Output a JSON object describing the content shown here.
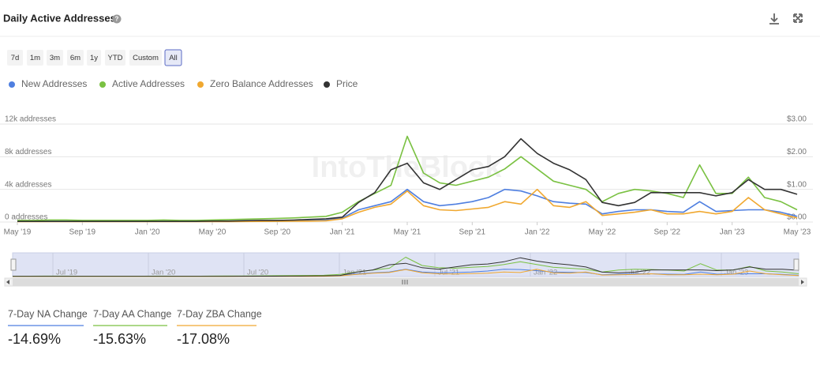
{
  "header": {
    "title": "Daily Active Addresses"
  },
  "ranges": [
    "7d",
    "1m",
    "3m",
    "6m",
    "1y",
    "YTD",
    "Custom",
    "All"
  ],
  "chart_data": {
    "type": "line",
    "watermark": "IntoTheBlock",
    "x": [
      "2019-05",
      "2019-06",
      "2019-07",
      "2019-08",
      "2019-09",
      "2019-10",
      "2019-11",
      "2019-12",
      "2020-01",
      "2020-02",
      "2020-03",
      "2020-04",
      "2020-05",
      "2020-06",
      "2020-07",
      "2020-08",
      "2020-09",
      "2020-10",
      "2020-11",
      "2020-12",
      "2021-01",
      "2021-02",
      "2021-03",
      "2021-04",
      "2021-05",
      "2021-06",
      "2021-07",
      "2021-08",
      "2021-09",
      "2021-10",
      "2021-11",
      "2021-12",
      "2022-01",
      "2022-02",
      "2022-03",
      "2022-04",
      "2022-05",
      "2022-06",
      "2022-07",
      "2022-08",
      "2022-09",
      "2022-10",
      "2022-11",
      "2022-12",
      "2023-01",
      "2023-02",
      "2023-03",
      "2023-04",
      "2023-05"
    ],
    "xticks": [
      {
        "value": "2019-05",
        "label": "May '19"
      },
      {
        "value": "2019-09",
        "label": "Sep '19"
      },
      {
        "value": "2020-01",
        "label": "Jan '20"
      },
      {
        "value": "2020-05",
        "label": "May '20"
      },
      {
        "value": "2020-09",
        "label": "Sep '20"
      },
      {
        "value": "2021-01",
        "label": "Jan '21"
      },
      {
        "value": "2021-05",
        "label": "May '21"
      },
      {
        "value": "2021-09",
        "label": "Sep '21"
      },
      {
        "value": "2022-01",
        "label": "Jan '22"
      },
      {
        "value": "2022-05",
        "label": "May '22"
      },
      {
        "value": "2022-09",
        "label": "Sep '22"
      },
      {
        "value": "2023-01",
        "label": "Jan '23"
      },
      {
        "value": "2023-05",
        "label": "May '23"
      }
    ],
    "ylim": [
      0,
      12000
    ],
    "yticks": [
      {
        "value": 12000,
        "label": "12k addresses"
      },
      {
        "value": 8000,
        "label": "8k addresses"
      },
      {
        "value": 4000,
        "label": "4k addresses"
      },
      {
        "value": 0,
        "label": "0 addresses"
      }
    ],
    "y2lim": [
      0,
      3
    ],
    "y2ticks": [
      {
        "value": 3,
        "label": "$3.00"
      },
      {
        "value": 2,
        "label": "$2.00"
      },
      {
        "value": 1,
        "label": "$1.00"
      },
      {
        "value": 0,
        "label": "$0.00"
      }
    ],
    "grid": true,
    "series": [
      {
        "name": "New Addresses",
        "color": "#4f7fe0",
        "values": [
          80,
          80,
          90,
          90,
          80,
          80,
          80,
          80,
          80,
          90,
          80,
          80,
          90,
          100,
          110,
          120,
          130,
          150,
          180,
          220,
          500,
          1500,
          2000,
          2500,
          4000,
          2500,
          2000,
          2200,
          2500,
          3000,
          4000,
          3800,
          3200,
          2500,
          2300,
          2200,
          1000,
          1300,
          1500,
          1500,
          1300,
          1200,
          2500,
          1300,
          1400,
          1500,
          1500,
          1200,
          700
        ]
      },
      {
        "name": "Active Addresses",
        "color": "#7ac142",
        "values": [
          200,
          200,
          250,
          250,
          200,
          200,
          200,
          200,
          200,
          250,
          200,
          200,
          250,
          300,
          350,
          400,
          450,
          500,
          600,
          700,
          1200,
          2500,
          3500,
          4500,
          10500,
          6000,
          4800,
          4500,
          5000,
          5500,
          6500,
          8000,
          6500,
          5000,
          4500,
          4000,
          2500,
          3500,
          4000,
          3800,
          3500,
          3000,
          7000,
          3500,
          3500,
          5500,
          3000,
          2500,
          1500
        ]
      },
      {
        "name": "Zero Balance Addresses",
        "color": "#f0a830",
        "values": [
          50,
          50,
          50,
          50,
          50,
          50,
          50,
          50,
          50,
          50,
          50,
          50,
          60,
          60,
          70,
          80,
          90,
          100,
          120,
          150,
          400,
          1200,
          1800,
          2200,
          3800,
          2000,
          1500,
          1400,
          1600,
          1800,
          2500,
          2200,
          4000,
          2000,
          1800,
          2500,
          800,
          1000,
          1200,
          1500,
          1000,
          1000,
          1300,
          1000,
          1300,
          3000,
          1500,
          1000,
          500
        ]
      },
      {
        "name": "Price",
        "color": "#333333",
        "axis": "y2",
        "values": [
          0.02,
          0.02,
          0.02,
          0.02,
          0.02,
          0.02,
          0.02,
          0.02,
          0.02,
          0.02,
          0.02,
          0.02,
          0.03,
          0.03,
          0.04,
          0.05,
          0.05,
          0.06,
          0.08,
          0.1,
          0.15,
          0.6,
          0.9,
          1.6,
          1.8,
          1.2,
          1.0,
          1.3,
          1.6,
          1.7,
          2.0,
          2.55,
          2.1,
          1.8,
          1.6,
          1.3,
          0.6,
          0.5,
          0.6,
          0.9,
          0.9,
          0.9,
          0.9,
          0.8,
          0.9,
          1.3,
          1.0,
          1.0,
          0.85
        ]
      }
    ],
    "navigator_labels": [
      "Jul '19",
      "Jan '20",
      "Jul '20",
      "Jan '21",
      "Jul '21",
      "Jan '22",
      "Jul '22",
      "Jan '23"
    ]
  },
  "stats": [
    {
      "label": "7-Day NA Change",
      "value": "-14.69%"
    },
    {
      "label": "7-Day AA Change",
      "value": "-15.63%"
    },
    {
      "label": "7-Day ZBA Change",
      "value": "-17.08%"
    }
  ]
}
